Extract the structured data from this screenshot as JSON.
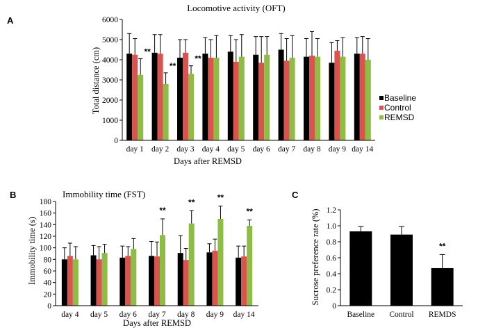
{
  "chart_data": [
    {
      "panel": "A",
      "type": "bar",
      "title": "Locomotive activity (OFT)",
      "xlabel": "Days after REMSD",
      "ylabel": "Total distance (cm)",
      "ylim": [
        0,
        6000
      ],
      "yticks": [
        0,
        1000,
        2000,
        3000,
        4000,
        5000,
        6000
      ],
      "categories": [
        "day 1",
        "day 2",
        "day 3",
        "day 4",
        "day 5",
        "day 6",
        "day 7",
        "day 8",
        "day 9",
        "day 14"
      ],
      "series": [
        {
          "name": "Baseline",
          "color": "#000000",
          "values": [
            4300,
            4350,
            4100,
            4300,
            4400,
            4250,
            4500,
            4150,
            3850,
            4300
          ],
          "errors": [
            1000,
            900,
            900,
            800,
            800,
            900,
            800,
            900,
            1000,
            800
          ]
        },
        {
          "name": "Control",
          "color": "#d9534f",
          "values": [
            4250,
            4300,
            4350,
            4100,
            3900,
            3850,
            3950,
            4200,
            4450,
            4300
          ],
          "errors": [
            800,
            950,
            650,
            900,
            1100,
            1300,
            1100,
            1200,
            500,
            850
          ]
        },
        {
          "name": "REMSD",
          "color": "#8fbc45",
          "values": [
            3250,
            2800,
            3300,
            4100,
            4150,
            4250,
            4100,
            4150,
            4150,
            4000
          ],
          "errors": [
            800,
            550,
            400,
            1100,
            1100,
            900,
            1100,
            900,
            950,
            1050
          ]
        }
      ],
      "significance": [
        {
          "category": "day 1",
          "series": "REMSD",
          "label": "**"
        },
        {
          "category": "day 2",
          "series": "REMSD",
          "label": "**"
        },
        {
          "category": "day 3",
          "series": "REMSD",
          "label": "**"
        }
      ],
      "legend": "right"
    },
    {
      "panel": "B",
      "type": "bar",
      "title": "Immobility time (FST)",
      "xlabel": "Days after REMSD",
      "ylabel": "Immobility time (s)",
      "ylim": [
        0,
        180
      ],
      "yticks": [
        0,
        20,
        40,
        60,
        80,
        100,
        120,
        140,
        160,
        180
      ],
      "categories": [
        "day 4",
        "day 5",
        "day 6",
        "day 7",
        "day 8",
        "day 9",
        "day 14"
      ],
      "series": [
        {
          "name": "Baseline",
          "color": "#000000",
          "values": [
            80,
            87,
            83,
            86,
            91,
            92,
            83
          ],
          "errors": [
            20,
            17,
            20,
            25,
            30,
            15,
            20
          ]
        },
        {
          "name": "Control",
          "color": "#d9534f",
          "values": [
            86,
            80,
            86,
            85,
            79,
            95,
            85
          ],
          "errors": [
            22,
            22,
            16,
            25,
            20,
            20,
            18
          ]
        },
        {
          "name": "REMSD",
          "color": "#8fbc45",
          "values": [
            80,
            91,
            98,
            122,
            142,
            150,
            138
          ],
          "errors": [
            22,
            15,
            18,
            28,
            22,
            22,
            10
          ]
        }
      ],
      "significance": [
        {
          "category": "day 7",
          "series": "REMSD",
          "label": "**"
        },
        {
          "category": "day 8",
          "series": "REMSD",
          "label": "**"
        },
        {
          "category": "day 9",
          "series": "REMSD",
          "label": "**"
        },
        {
          "category": "day 14",
          "series": "REMSD",
          "label": "**"
        }
      ]
    },
    {
      "panel": "C",
      "type": "bar",
      "title": "",
      "xlabel": "",
      "ylabel": "Sucrose preference rate (%)",
      "ylim": [
        0,
        1.2
      ],
      "yticks": [
        "0",
        "0.2",
        "0.4",
        "0.6",
        "0.8",
        "1.0",
        "1.2"
      ],
      "categories": [
        "Baseline",
        "Control",
        "REMDS"
      ],
      "series": [
        {
          "color": "#000000",
          "values": [
            0.93,
            0.89,
            0.47
          ],
          "errors": [
            0.06,
            0.1,
            0.17
          ]
        }
      ],
      "significance": [
        {
          "category": "REMDS",
          "label": "**"
        }
      ]
    }
  ]
}
